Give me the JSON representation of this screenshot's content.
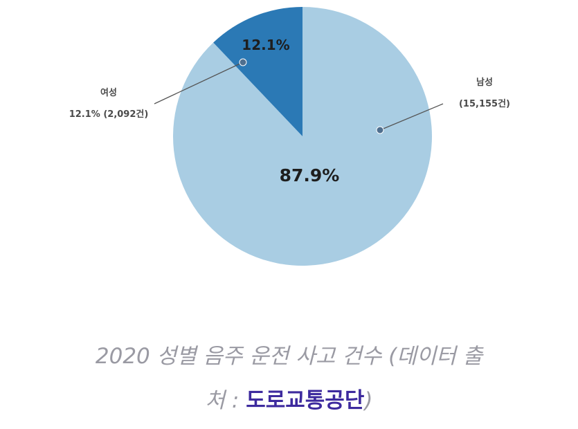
{
  "chart_data": {
    "type": "pie",
    "slices": [
      {
        "name": "남성",
        "value": 87.9,
        "percent_label": "87.9%",
        "callout": [
          "남성",
          "(15,155건)"
        ],
        "color": "#a9cde3"
      },
      {
        "name": "여성",
        "value": 12.1,
        "percent_label": "12.1%",
        "callout": [
          "여성",
          "12.1% (2,092건)"
        ],
        "color": "#2b79b5"
      }
    ]
  },
  "caption": {
    "line1": "2020 성별 음주 운전 사고 건수 (데이터 출",
    "line2_prefix": "처 : ",
    "source": "도로교통공단",
    "line2_suffix": ")"
  },
  "colors": {
    "leader_line": "#555555",
    "leader_dot": "#4f6f8f",
    "caption_text": "#9a9aa3",
    "source_text": "#3d2a9e"
  }
}
